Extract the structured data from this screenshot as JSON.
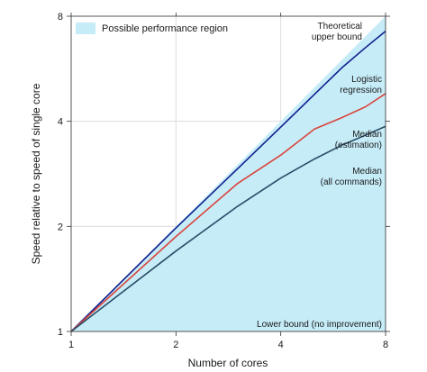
{
  "chart_data": {
    "type": "line",
    "title": "",
    "xlabel": "Number of cores",
    "ylabel": "Speed relative to speed of single core",
    "xscale": "log2",
    "yscale": "log2",
    "xlim": [
      1,
      8
    ],
    "ylim": [
      1,
      8
    ],
    "xticks": [
      1,
      2,
      4,
      8
    ],
    "yticks": [
      1,
      2,
      4,
      8
    ],
    "grid": true,
    "legend": {
      "position": "top-left",
      "entries": [
        {
          "label": "Possible performance region",
          "color": "#c6ecf8"
        }
      ]
    },
    "region": {
      "name": "Possible performance region",
      "color": "#c6ecf8",
      "upper": {
        "x": [
          1,
          8
        ],
        "y": [
          1,
          8
        ]
      },
      "lower": {
        "x": [
          1,
          8
        ],
        "y": [
          1,
          1
        ]
      }
    },
    "series": [
      {
        "name": "Logistic regression",
        "color": "#0f1f8c",
        "x": [
          1,
          2,
          3,
          4,
          5,
          6,
          7,
          8
        ],
        "y": [
          1,
          1.98,
          2.92,
          3.85,
          4.78,
          5.7,
          6.5,
          7.25
        ]
      },
      {
        "name": "Median (estimation)",
        "color": "#d9443c",
        "x": [
          1,
          2,
          3,
          4,
          5,
          6,
          7,
          8
        ],
        "y": [
          1,
          1.87,
          2.65,
          3.2,
          3.8,
          4.1,
          4.4,
          4.8
        ]
      },
      {
        "name": "Median (all commands)",
        "color": "#2a4d66",
        "x": [
          1,
          2,
          3,
          4,
          5,
          6,
          7,
          8
        ],
        "y": [
          1,
          1.7,
          2.28,
          2.75,
          3.12,
          3.42,
          3.65,
          3.87
        ]
      }
    ],
    "annotations": [
      {
        "lines": [
          "Theoretical",
          "upper bound"
        ]
      },
      {
        "lines": [
          "Logistic",
          "regression"
        ]
      },
      {
        "lines": [
          "Median",
          "(estimation)"
        ]
      },
      {
        "lines": [
          "Median",
          "(all commands)"
        ]
      },
      {
        "lines": [
          "Lower bound (no improvement)"
        ]
      }
    ]
  }
}
